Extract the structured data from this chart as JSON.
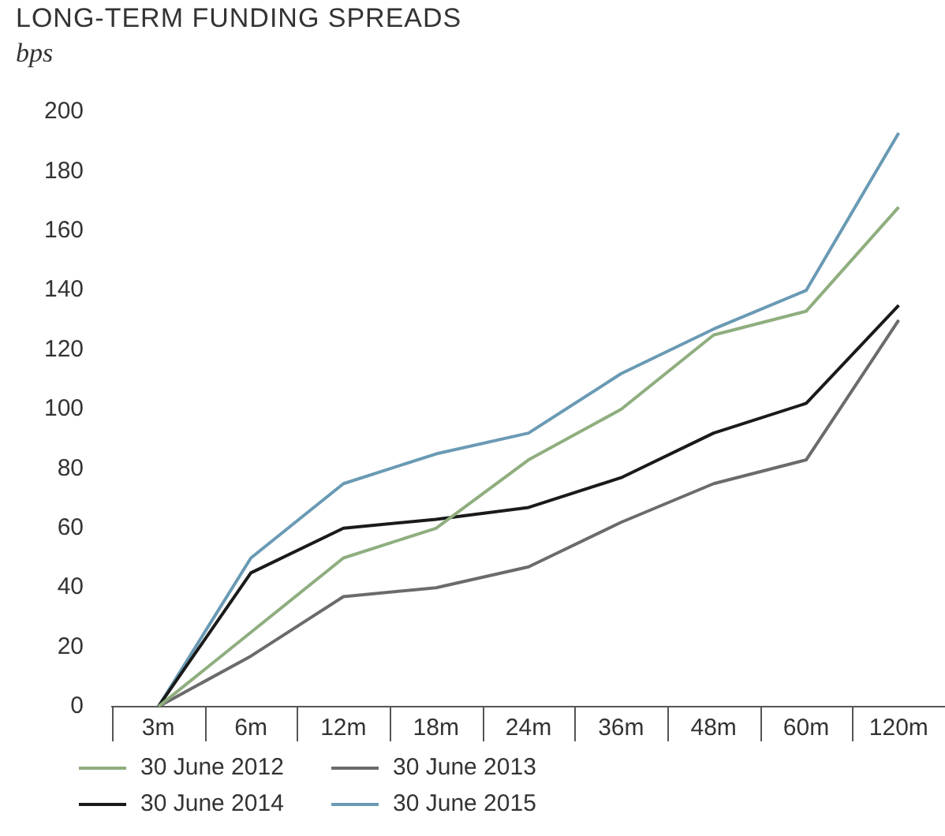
{
  "chart_data": {
    "type": "line",
    "title": "LONG-TERM FUNDING SPREADS",
    "ylabel": "bps",
    "categories": [
      "3m",
      "6m",
      "12m",
      "18m",
      "24m",
      "36m",
      "48m",
      "60m",
      "120m"
    ],
    "series": [
      {
        "name": "30 June 2012",
        "color": "#8fae7f",
        "values": [
          0,
          25,
          50,
          60,
          83,
          100,
          125,
          133,
          168
        ]
      },
      {
        "name": "30 June 2013",
        "color": "#6b6b6b",
        "values": [
          0,
          17,
          37,
          40,
          47,
          62,
          75,
          83,
          130
        ]
      },
      {
        "name": "30 June 2014",
        "color": "#1a1a1a",
        "values": [
          0,
          45,
          60,
          63,
          67,
          77,
          92,
          102,
          135
        ]
      },
      {
        "name": "30 June 2015",
        "color": "#6a9ab4",
        "values": [
          0,
          50,
          75,
          85,
          92,
          112,
          127,
          140,
          193
        ]
      }
    ],
    "ylim": [
      0,
      200
    ],
    "yticks": [
      0,
      20,
      40,
      60,
      80,
      100,
      120,
      140,
      160,
      180,
      200
    ],
    "grid": false,
    "legend": "bottom",
    "marker": "none",
    "line_style": "solid"
  }
}
